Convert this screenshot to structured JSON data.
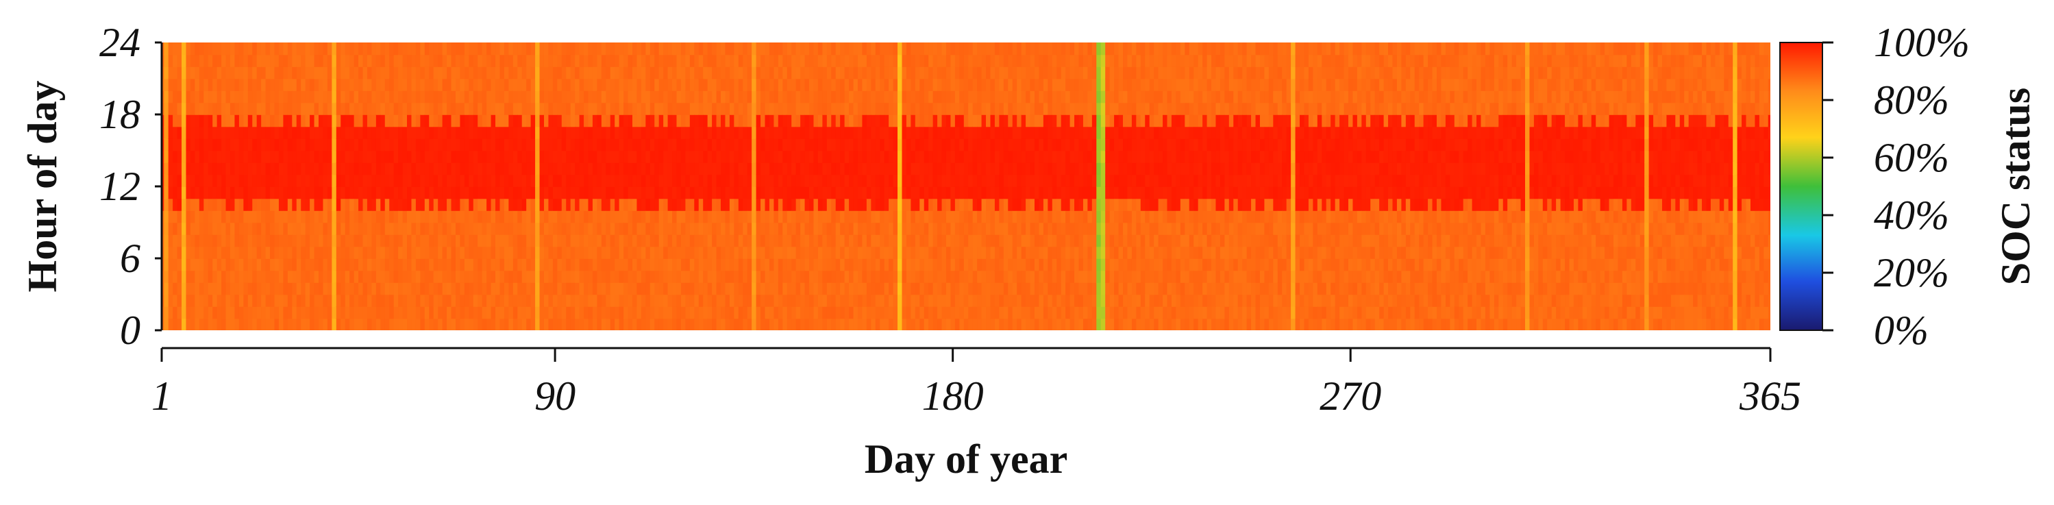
{
  "chart_data": {
    "type": "heatmap",
    "title": "",
    "xlabel": "Day of year",
    "ylabel": "Hour of day",
    "colorbar_label": "SOC status",
    "xlim": [
      1,
      365
    ],
    "ylim": [
      0,
      24
    ],
    "x_ticks": [
      "1",
      "90",
      "180",
      "270",
      "365"
    ],
    "y_ticks": [
      "0",
      "6",
      "12",
      "18",
      "24"
    ],
    "colorbar_ticks": [
      "0%",
      "20%",
      "40%",
      "60%",
      "80%",
      "100%"
    ],
    "colormap": [
      "#1a1a6e",
      "#1f4fe0",
      "#19c8e6",
      "#3fbf3a",
      "#ffd21a",
      "#ff8c1a",
      "#ff1a00"
    ],
    "description_values": {
      "daytime_hours": [
        10,
        17
      ],
      "daytime_soc_percent": 100,
      "night_soc_percent": 88,
      "low_soc_days": [
        {
          "day": 2,
          "soc_percent": 80
        },
        {
          "day": 6,
          "soc_percent": 75
        },
        {
          "day": 40,
          "soc_percent": 76
        },
        {
          "day": 86,
          "soc_percent": 78
        },
        {
          "day": 135,
          "soc_percent": 80
        },
        {
          "day": 168,
          "soc_percent": 72
        },
        {
          "day": 213,
          "soc_percent": 58
        },
        {
          "day": 214,
          "soc_percent": 62
        },
        {
          "day": 257,
          "soc_percent": 78
        },
        {
          "day": 310,
          "soc_percent": 80
        },
        {
          "day": 337,
          "soc_percent": 80
        },
        {
          "day": 357,
          "soc_percent": 74
        }
      ]
    }
  },
  "colors": {
    "axis": "#111111",
    "background": "#ffffff"
  }
}
